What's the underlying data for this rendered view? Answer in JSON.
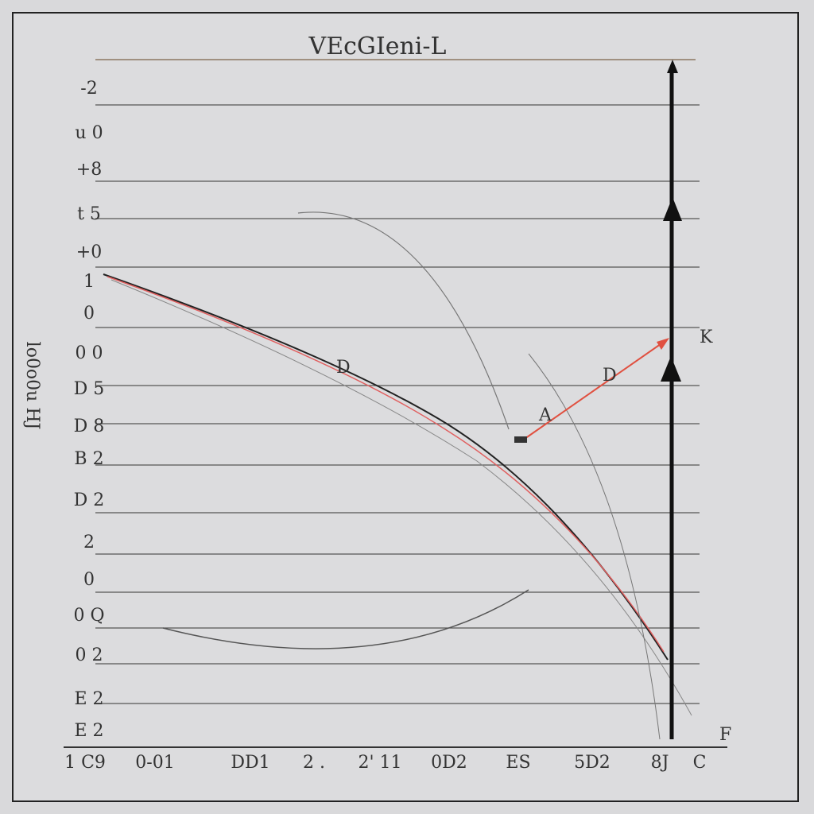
{
  "title": "VEcGIeni-L",
  "y_axis_label": "lo0o0u HJ",
  "y_labels": [
    "-2",
    "u 0",
    "+8",
    "t 5",
    "+0",
    "1",
    "0",
    "0 0",
    "D 5",
    "D 8",
    "B 2",
    "D 2",
    "2",
    "0",
    "0 Q",
    "0 2",
    "E 2",
    "E 2"
  ],
  "x_labels": [
    "1 C9",
    "0-01",
    "DD1",
    "2 .",
    "2' 11",
    "0D2",
    "ES",
    "5D2",
    "8J",
    "C"
  ],
  "annotations": [
    "D",
    "A",
    "D",
    "K",
    "F"
  ]
}
